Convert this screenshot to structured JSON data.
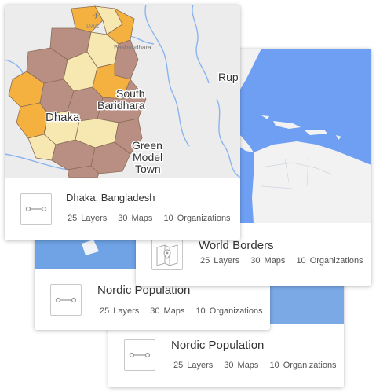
{
  "cards": [
    {
      "title": "Nordic Population",
      "layers_count": "25",
      "layers_label": "Layers",
      "maps_count": "30",
      "maps_label": "Maps",
      "orgs_count": "10",
      "orgs_label": "Organizations",
      "icon": "line-layer-icon"
    },
    {
      "title": "Nordic Population",
      "layers_count": "25",
      "layers_label": "Layers",
      "maps_count": "30",
      "maps_label": "Maps",
      "orgs_count": "10",
      "orgs_label": "Organizations",
      "icon": "line-layer-icon"
    },
    {
      "title": "World Borders",
      "layers_count": "25",
      "layers_label": "Layers",
      "maps_count": "30",
      "maps_label": "Maps",
      "orgs_count": "10",
      "orgs_label": "Organizations",
      "icon": "map-pin-icon"
    },
    {
      "title": "Dhaka, Bangladesh",
      "layers_count": "25",
      "layers_label": "Layers",
      "maps_count": "30",
      "maps_label": "Maps",
      "orgs_count": "10",
      "orgs_label": "Organizations",
      "icon": "line-layer-icon"
    }
  ],
  "map_labels": {
    "dac": "DAC",
    "south": "South",
    "baridhara": "Baridhara",
    "dhaka": "Dhaka",
    "green": "Green",
    "model": "Model",
    "town": "Town",
    "rup": "Rup",
    "bashundhara": "Bashundhara"
  },
  "colors": {
    "ocean_blue": "#6fa3f3",
    "land_light": "#f2f2f2",
    "dhaka_orange": "#f4b13f",
    "dhaka_brown": "#b98f84",
    "dhaka_cream": "#f6e8b0",
    "water_line": "#8ab4f0"
  }
}
